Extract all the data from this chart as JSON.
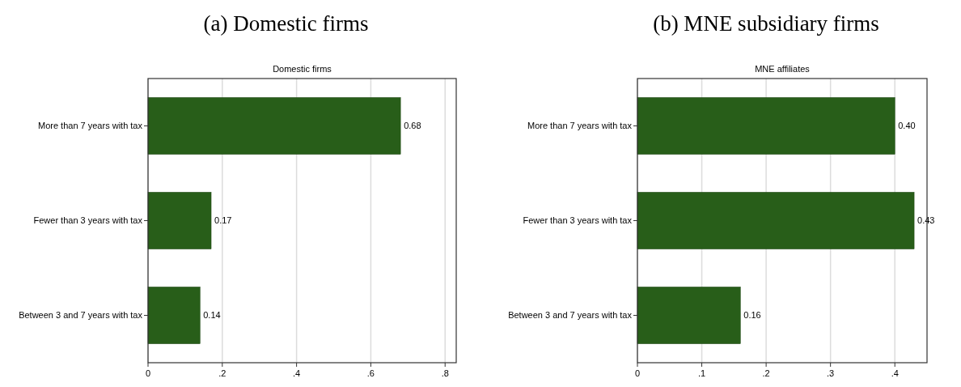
{
  "chart_data": [
    {
      "type": "bar",
      "title": "(a) Domestic firms",
      "subtitle": "Domestic firms",
      "orientation": "horizontal",
      "categories": [
        "More than 7 years with tax",
        "Fewer than 3 years with tax",
        "Between 3 and 7 years with tax"
      ],
      "values": [
        0.68,
        0.17,
        0.14
      ],
      "value_labels": [
        "0.68",
        "0.17",
        "0.14"
      ],
      "color": "#285e19",
      "xlim": [
        0,
        0.83
      ],
      "xticks": [
        0,
        {
          "value": 0.2,
          "label": ".2"
        },
        {
          "value": 0.4,
          "label": ".4"
        },
        {
          "value": 0.6,
          "label": ".6"
        },
        {
          "value": 0.8,
          "label": ".8"
        }
      ],
      "grid": "x"
    },
    {
      "type": "bar",
      "title": "(b) MNE subsidiary firms",
      "subtitle": "MNE affiliates",
      "orientation": "horizontal",
      "categories": [
        "More than 7 years with tax",
        "Fewer than 3 years with tax",
        "Between 3 and 7 years with tax"
      ],
      "values": [
        0.4,
        0.43,
        0.16
      ],
      "value_labels": [
        "0.40",
        "0.43",
        "0.16"
      ],
      "color": "#285e19",
      "xlim": [
        0,
        0.45
      ],
      "xticks": [
        0,
        {
          "value": 0.1,
          "label": ".1"
        },
        {
          "value": 0.2,
          "label": ".2"
        },
        {
          "value": 0.3,
          "label": ".3"
        },
        {
          "value": 0.4,
          "label": ".4"
        }
      ],
      "grid": "x"
    }
  ]
}
